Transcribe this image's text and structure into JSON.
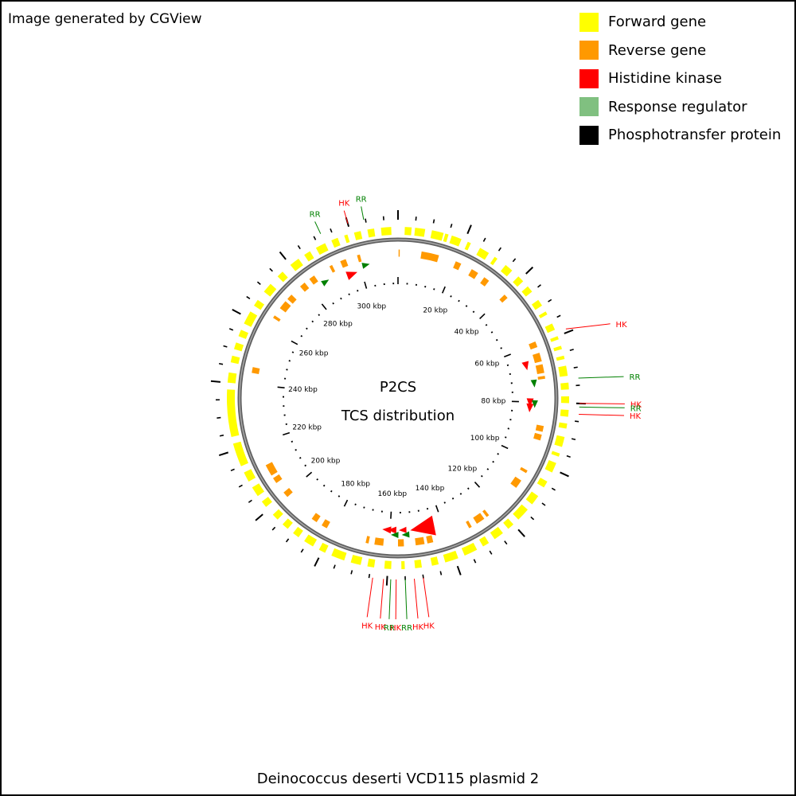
{
  "header": {
    "credit": "Image generated by CGView"
  },
  "legend": [
    {
      "label": "Forward gene",
      "color": "#FFFF00"
    },
    {
      "label": "Reverse gene",
      "color": "#FF9900"
    },
    {
      "label": "Histidine kinase",
      "color": "#FF0000"
    },
    {
      "label": "Response regulator",
      "color": "#80C080"
    },
    {
      "label": "Phosphotransfer protein",
      "color": "#000000"
    }
  ],
  "map": {
    "center_title": "P2CS",
    "center_subtitle": "TCS distribution",
    "caption": "Deinococcus deserti VCD115 plasmid 2",
    "genome_length_kbp": 314,
    "tick_labels": [
      "20 kbp",
      "40 kbp",
      "60 kbp",
      "80 kbp",
      "100 kbp",
      "120 kbp",
      "140 kbp",
      "160 kbp",
      "180 kbp",
      "200 kbp",
      "220 kbp",
      "240 kbp",
      "260 kbp",
      "280 kbp",
      "300 kbp"
    ],
    "colors": {
      "forward": "#FFFF00",
      "reverse": "#FF9900",
      "hk": "#FF0000",
      "rr": "#008000",
      "ring": "#808080",
      "tick": "#000000"
    },
    "annotations": [
      {
        "label": "RR",
        "type": "rr",
        "kbp": 304.5
      },
      {
        "label": "HK",
        "type": "hk",
        "kbp": 300.0
      },
      {
        "label": "RR",
        "type": "rr",
        "kbp": 292.0
      },
      {
        "label": "HK",
        "type": "hk",
        "kbp": 59.0
      },
      {
        "label": "RR",
        "type": "rr",
        "kbp": 73.0
      },
      {
        "label": "HK",
        "type": "hk",
        "kbp": 80.0
      },
      {
        "label": "RR",
        "type": "rr",
        "kbp": 81.0
      },
      {
        "label": "HK",
        "type": "hk",
        "kbp": 83.0
      },
      {
        "label": "HK",
        "type": "hk",
        "kbp": 150.0
      },
      {
        "label": "HK",
        "type": "hk",
        "kbp": 152.5
      },
      {
        "label": "RR",
        "type": "rr",
        "kbp": 155.0
      },
      {
        "label": "HK",
        "type": "hk",
        "kbp": 157.5
      },
      {
        "label": "RR",
        "type": "rr",
        "kbp": 159.0
      },
      {
        "label": "HK",
        "type": "hk",
        "kbp": 161.0
      },
      {
        "label": "HK",
        "type": "hk",
        "kbp": 164.0
      }
    ],
    "forward_genes_kbp": [
      [
        2,
        4
      ],
      [
        5,
        8
      ],
      [
        10,
        13.5
      ],
      [
        14,
        15
      ],
      [
        16,
        19
      ],
      [
        21,
        22
      ],
      [
        25,
        28
      ],
      [
        30,
        31
      ],
      [
        34,
        36.5
      ],
      [
        39,
        41
      ],
      [
        43,
        45
      ],
      [
        48,
        50
      ],
      [
        52,
        53
      ],
      [
        56,
        58
      ],
      [
        60,
        61
      ],
      [
        63,
        64
      ],
      [
        66,
        67
      ],
      [
        69,
        72
      ],
      [
        74,
        76
      ],
      [
        78,
        80
      ],
      [
        82,
        84
      ],
      [
        86,
        87.5
      ],
      [
        90,
        93
      ],
      [
        95,
        96
      ],
      [
        98,
        101
      ],
      [
        104,
        106
      ],
      [
        109,
        112
      ],
      [
        114,
        118
      ],
      [
        120,
        122
      ],
      [
        124,
        127
      ],
      [
        129,
        131
      ],
      [
        133,
        137
      ],
      [
        139,
        143
      ],
      [
        145,
        147
      ],
      [
        150,
        152
      ],
      [
        155,
        156
      ],
      [
        159,
        161
      ],
      [
        164,
        166
      ],
      [
        168,
        171
      ],
      [
        173,
        177
      ],
      [
        179,
        181
      ],
      [
        183,
        186
      ],
      [
        188,
        190
      ],
      [
        192,
        194
      ],
      [
        196,
        198
      ],
      [
        201,
        203
      ],
      [
        205,
        208
      ],
      [
        210,
        213
      ],
      [
        215,
        222
      ],
      [
        224,
        238
      ],
      [
        240,
        243
      ],
      [
        246,
        248
      ],
      [
        250,
        252
      ],
      [
        254,
        256
      ],
      [
        258,
        262
      ],
      [
        264,
        266
      ],
      [
        269,
        272
      ],
      [
        275,
        277
      ],
      [
        280,
        283
      ],
      [
        285,
        287
      ],
      [
        289,
        292
      ],
      [
        294,
        296
      ],
      [
        298,
        299
      ],
      [
        301,
        303
      ],
      [
        305,
        307
      ],
      [
        309,
        312
      ]
    ],
    "reverse_genes_kbp": [
      [
        0.2,
        0.6
      ],
      [
        8,
        14
      ],
      [
        20,
        22
      ],
      [
        26,
        28.5
      ],
      [
        31,
        33
      ],
      [
        40,
        41.5
      ],
      [
        59,
        61
      ],
      [
        63,
        66
      ],
      [
        67,
        70
      ],
      [
        71,
        72
      ],
      [
        88,
        90
      ],
      [
        91,
        93
      ],
      [
        104,
        105
      ],
      [
        108,
        111
      ],
      [
        124,
        125
      ],
      [
        126,
        129
      ],
      [
        131,
        132
      ],
      [
        145,
        147
      ],
      [
        148,
        151
      ],
      [
        155,
        157
      ],
      [
        162,
        165
      ],
      [
        167,
        168
      ],
      [
        182,
        184
      ],
      [
        186,
        188
      ],
      [
        199,
        201
      ],
      [
        205,
        207
      ],
      [
        208,
        212
      ],
      [
        244,
        246
      ],
      [
        264,
        265
      ],
      [
        268,
        271
      ],
      [
        272,
        274
      ],
      [
        278,
        280
      ],
      [
        282,
        284
      ],
      [
        290,
        291
      ],
      [
        294,
        296
      ],
      [
        300,
        301
      ]
    ],
    "hk_markers": [
      {
        "kbp": 66,
        "size": 1.6
      },
      {
        "kbp": 80,
        "size": 1.6
      },
      {
        "kbp": 82,
        "size": 1.6
      },
      {
        "kbp": 147,
        "size": 4.5
      },
      {
        "kbp": 155,
        "size": 1.4
      },
      {
        "kbp": 159,
        "size": 1.6
      },
      {
        "kbp": 161,
        "size": 1.6
      },
      {
        "kbp": 296,
        "size": 2
      }
    ],
    "rr_markers": [
      {
        "kbp": 73,
        "size": 1.4
      },
      {
        "kbp": 80.5,
        "size": 1.4
      },
      {
        "kbp": 154,
        "size": 1.4
      },
      {
        "kbp": 158,
        "size": 1.4
      },
      {
        "kbp": 286,
        "size": 1.4
      },
      {
        "kbp": 302,
        "size": 1.4
      }
    ]
  }
}
